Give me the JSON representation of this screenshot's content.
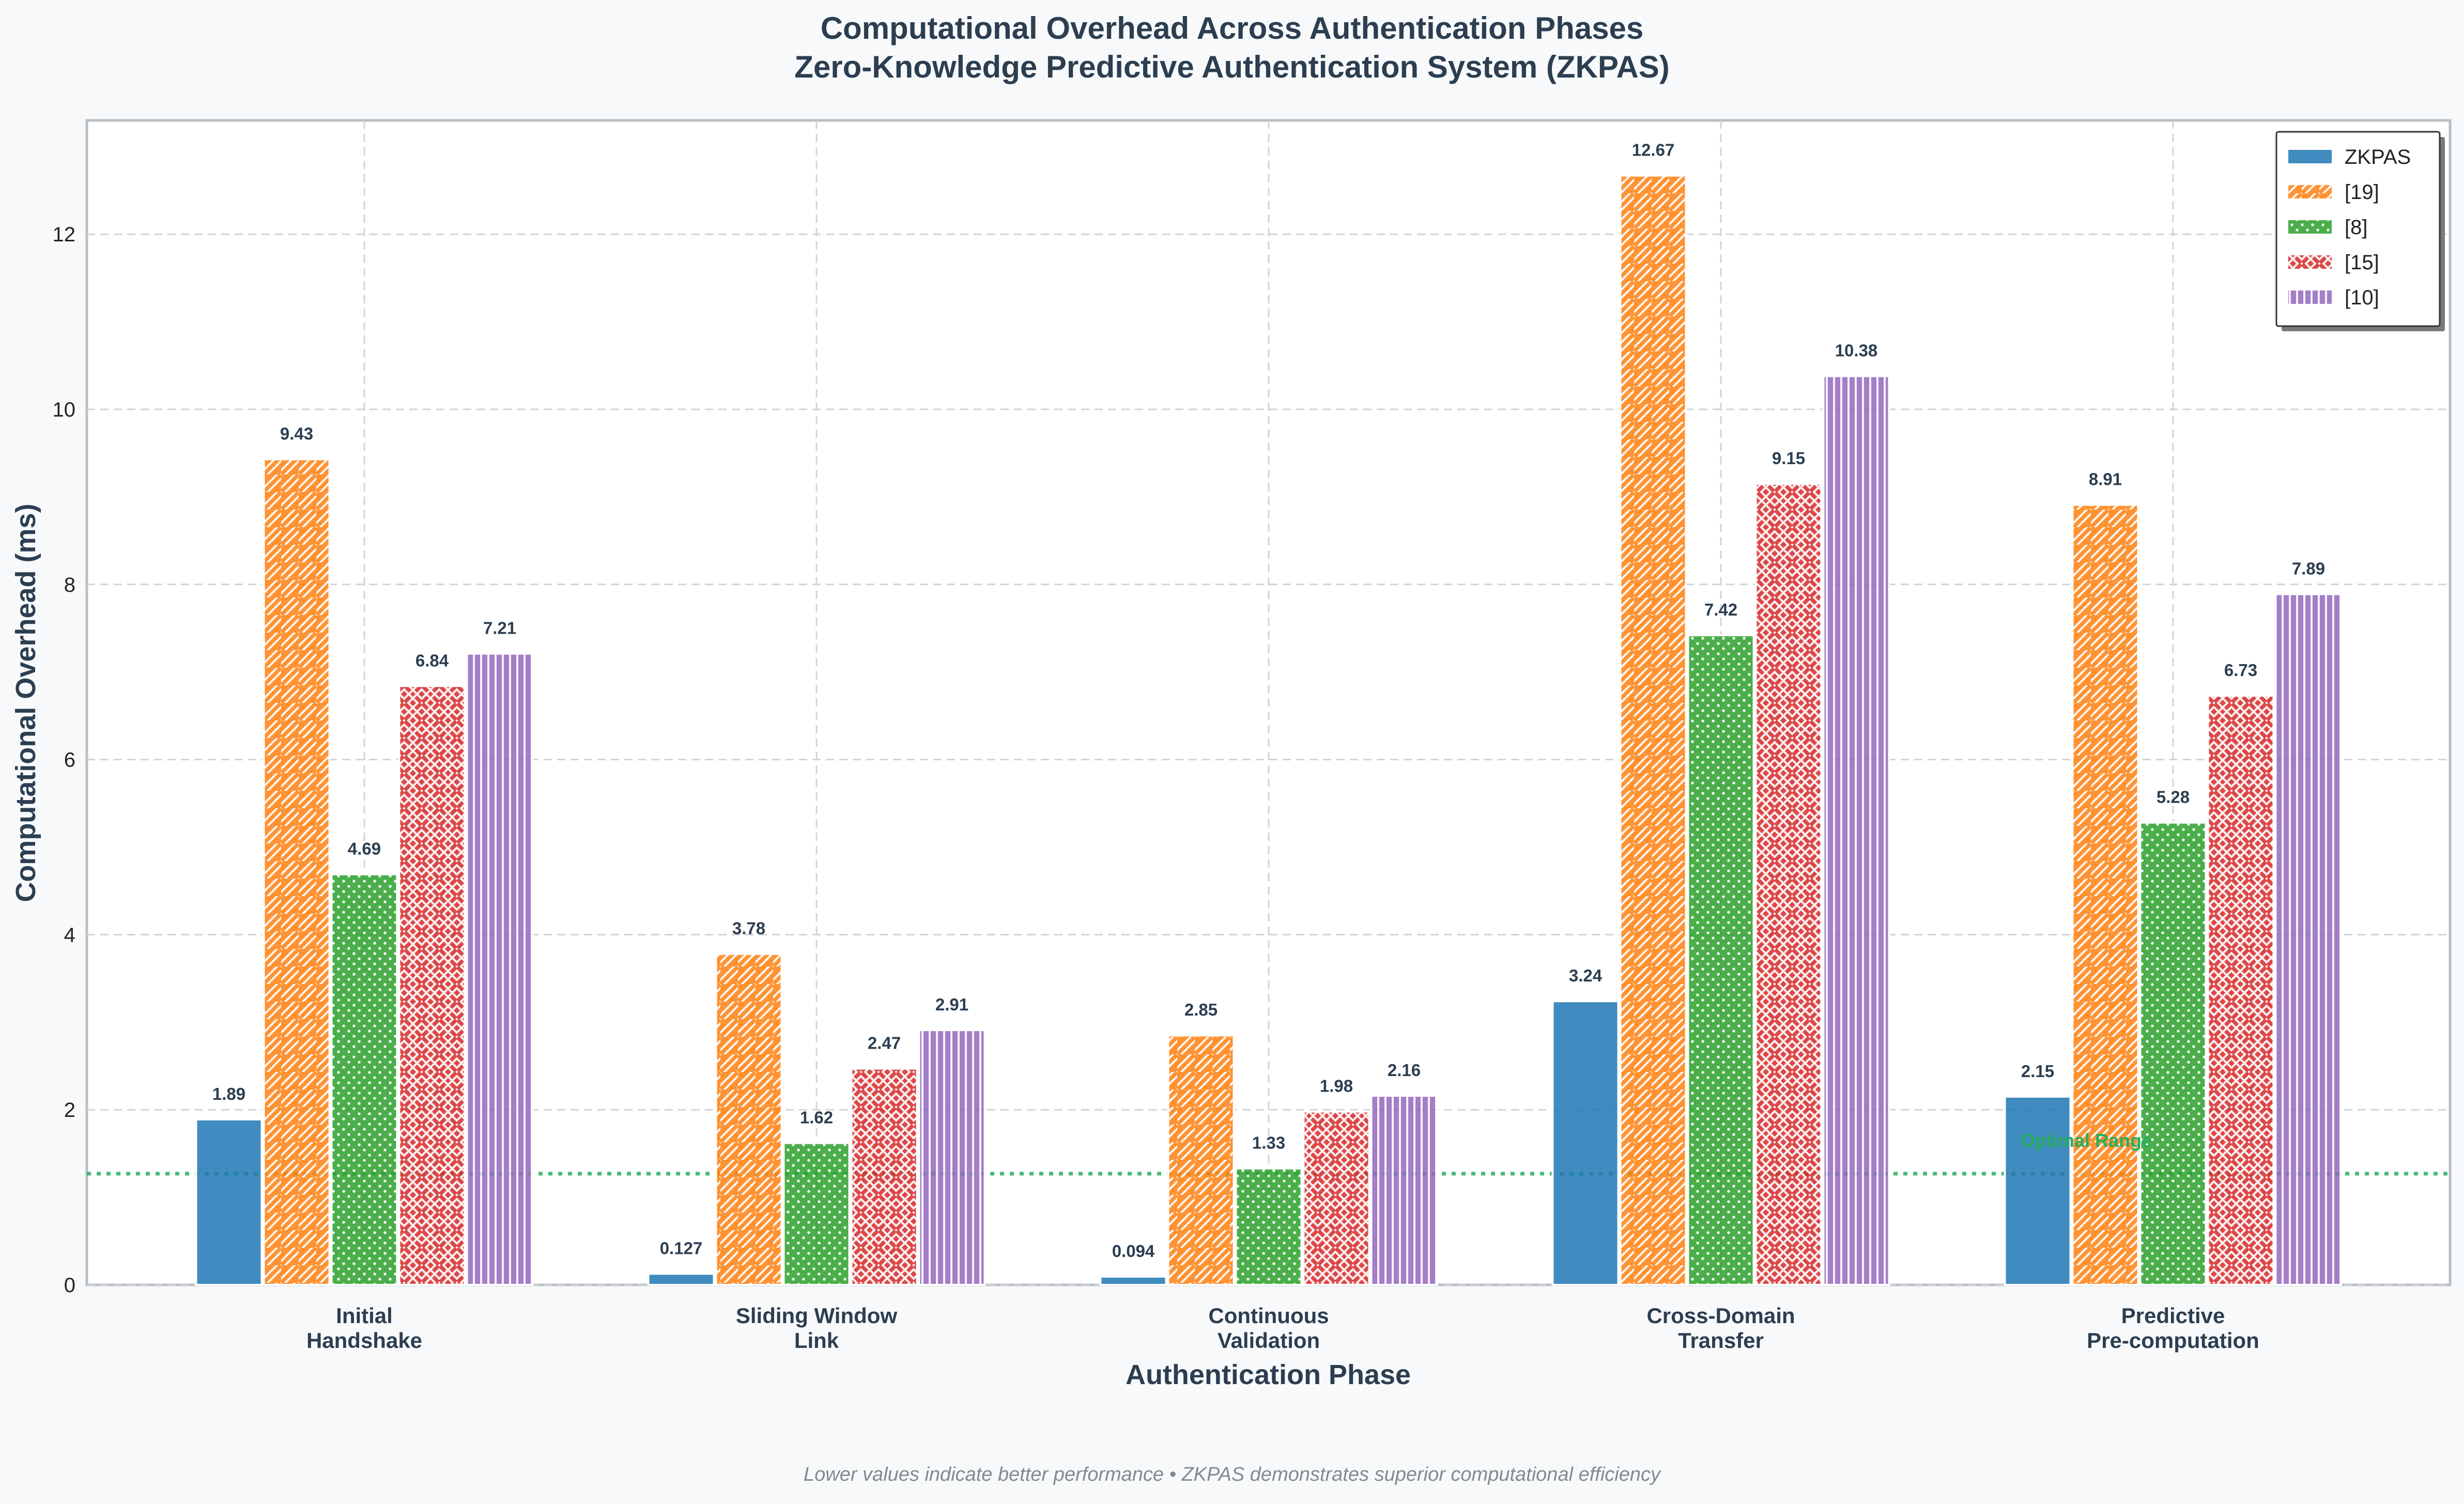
{
  "chart_data": {
    "type": "bar",
    "title": "Computational Overhead Across Authentication Phases",
    "subtitle": "Zero-Knowledge Predictive Authentication System (ZKPAS)",
    "xlabel": "Authentication Phase",
    "ylabel": "Computational Overhead (ms)",
    "categories": [
      [
        "Initial",
        "Handshake"
      ],
      [
        "Sliding Window",
        "Link"
      ],
      [
        "Continuous",
        "Validation"
      ],
      [
        "Cross-Domain",
        "Transfer"
      ],
      [
        "Predictive",
        "Pre-computation"
      ]
    ],
    "series": [
      {
        "name": "ZKPAS",
        "values": [
          1.89,
          0.127,
          0.094,
          3.24,
          2.15
        ],
        "value_labels": [
          "1.89",
          "0.127",
          "0.094",
          "3.24",
          "2.15"
        ],
        "color": "#1f77b4",
        "pattern": "none"
      },
      {
        "name": "[19]",
        "values": [
          9.43,
          3.78,
          2.85,
          12.67,
          8.91
        ],
        "value_labels": [
          "9.43",
          "3.78",
          "2.85",
          "12.67",
          "8.91"
        ],
        "color": "#ff7f0e",
        "pattern": "diagonal"
      },
      {
        "name": "[8]",
        "values": [
          4.69,
          1.62,
          1.33,
          7.42,
          5.28
        ],
        "value_labels": [
          "4.69",
          "1.62",
          "1.33",
          "7.42",
          "5.28"
        ],
        "color": "#2ca02c",
        "pattern": "dots"
      },
      {
        "name": "[15]",
        "values": [
          6.84,
          2.47,
          1.98,
          9.15,
          6.73
        ],
        "value_labels": [
          "6.84",
          "2.47",
          "1.98",
          "9.15",
          "6.73"
        ],
        "color": "#d62728",
        "pattern": "crosshatch"
      },
      {
        "name": "[10]",
        "values": [
          7.21,
          2.91,
          2.16,
          10.38,
          7.89
        ],
        "value_labels": [
          "7.21",
          "2.91",
          "2.16",
          "10.38",
          "7.89"
        ],
        "color": "#9467bd",
        "pattern": "vertical"
      }
    ],
    "ylim": [
      0,
      13.3
    ],
    "yticks": [
      0,
      2,
      4,
      6,
      8,
      10,
      12
    ],
    "grid": true,
    "legend": "top-right",
    "reference_line": {
      "value": 1.27,
      "label": "Optimal Range",
      "color": "#27ae60"
    },
    "footnote": "Lower values indicate better performance • ZKPAS demonstrates superior computational efficiency"
  }
}
